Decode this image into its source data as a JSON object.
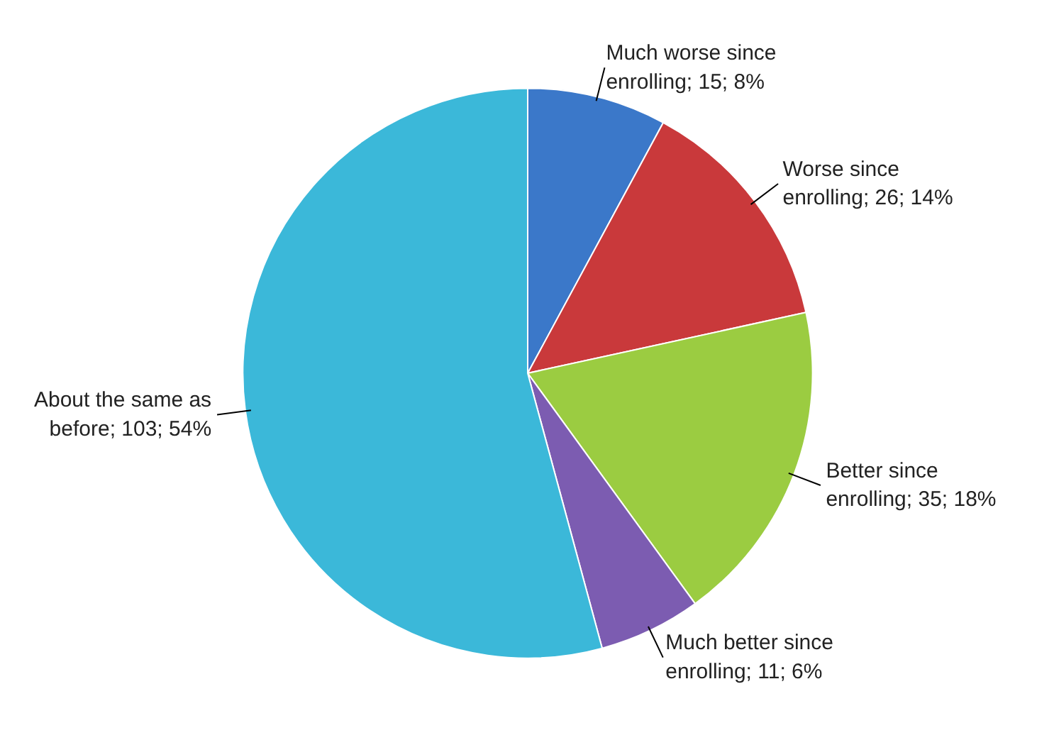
{
  "chart_data": {
    "type": "pie",
    "categories": [
      "Much worse since enrolling",
      "Worse since enrolling",
      "Better since enrolling",
      "Much better since enrolling",
      "About the same as before"
    ],
    "values": [
      15,
      26,
      35,
      11,
      103
    ],
    "value_labels": [
      "15; 8%",
      "26; 14%",
      "35; 18%",
      "11; 6%",
      "103; 54%"
    ],
    "colors": [
      "#3b78c9",
      "#c9393b",
      "#9bcc41",
      "#7c5cb1",
      "#3bb8d9"
    ]
  }
}
